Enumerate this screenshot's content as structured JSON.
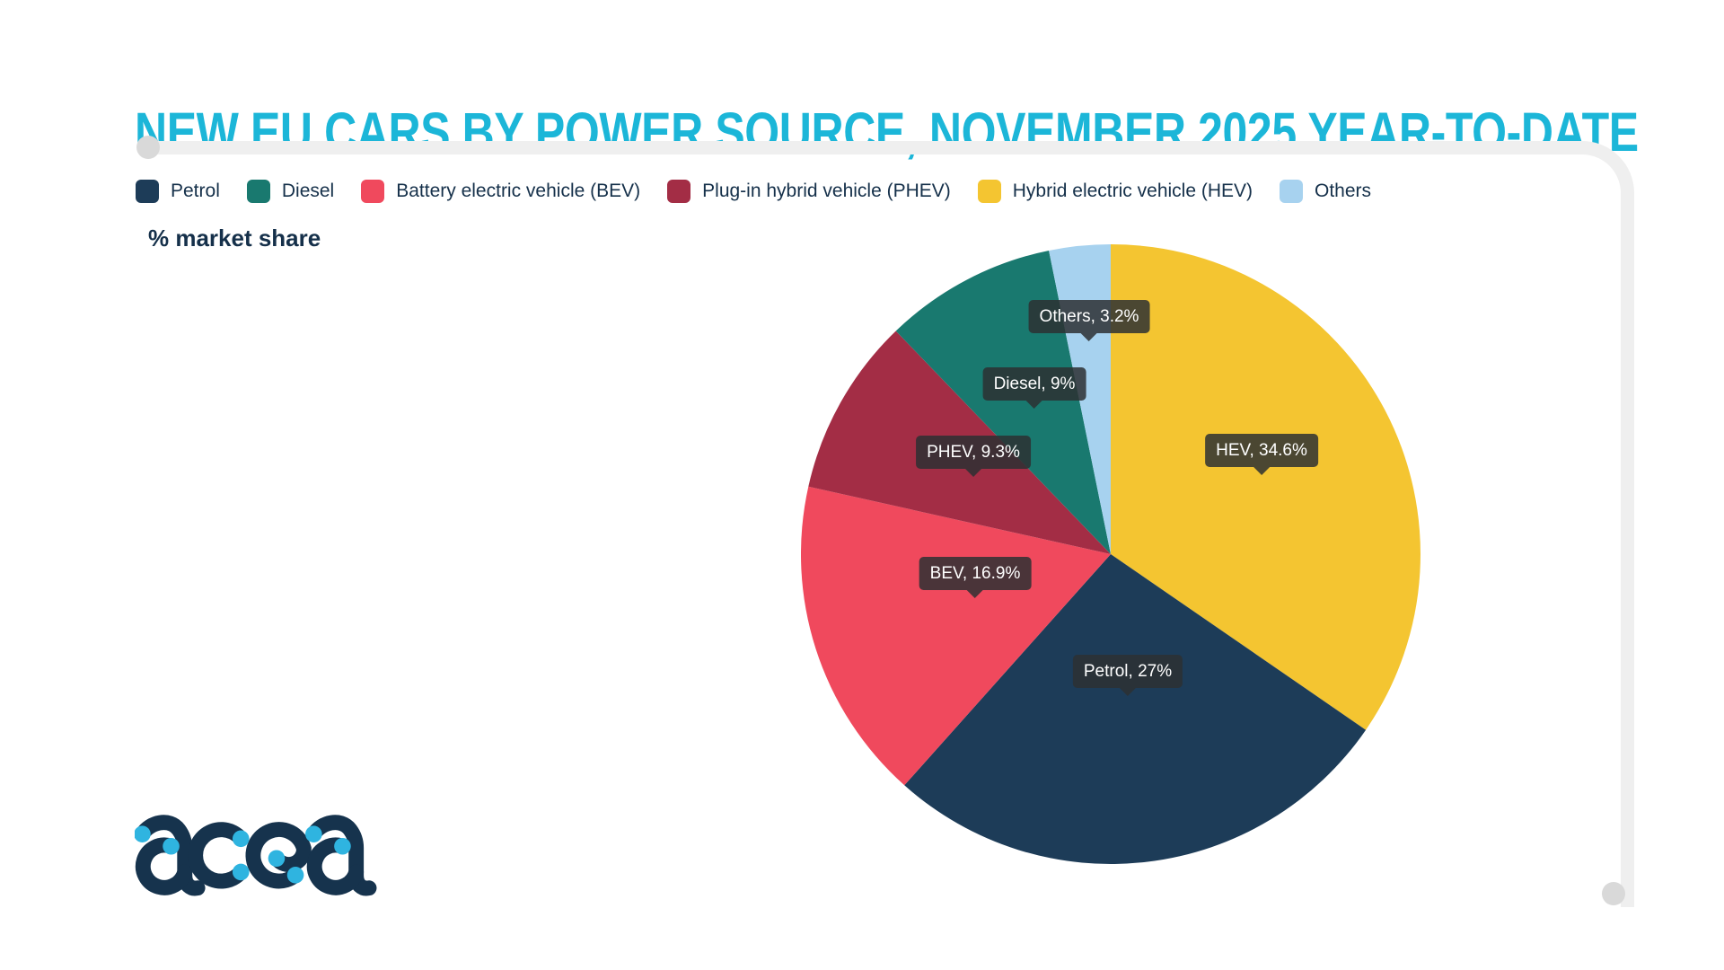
{
  "header": {
    "title": "NEW EU CARS BY POWER SOURCE, NOVEMBER 2025 YEAR-TO-DATE",
    "title_color": "#1cb6d8"
  },
  "note": {
    "label": "% market share"
  },
  "legend": [
    {
      "label": "Petrol",
      "color": "#1d3c58"
    },
    {
      "label": "Diesel",
      "color": "#19796f"
    },
    {
      "label": "Battery electric vehicle (BEV)",
      "color": "#f0495d"
    },
    {
      "label": "Plug-in hybrid vehicle (PHEV)",
      "color": "#a32d45"
    },
    {
      "label": "Hybrid electric vehicle (HEV)",
      "color": "#f4c531"
    },
    {
      "label": "Others",
      "color": "#a7d2ef"
    }
  ],
  "chart_data": {
    "type": "pie",
    "title": "NEW EU CARS BY POWER SOURCE, NOVEMBER 2025 YEAR-TO-DATE",
    "unit": "% market share",
    "start_angle_deg": 0,
    "direction": "clockwise",
    "legend_position": "top",
    "label_style": "dark-tooltip",
    "slices": [
      {
        "label": "Hybrid electric vehicle (HEV)",
        "short": "HEV",
        "value": 34.6,
        "color": "#f4c531",
        "label_text": "HEV, 34.6%",
        "label_r": 0.55
      },
      {
        "label": "Petrol",
        "short": "Petrol",
        "value": 27,
        "color": "#1d3c58",
        "label_text": "Petrol, 27%",
        "label_r": 0.46
      },
      {
        "label": "Battery electric vehicle (BEV)",
        "short": "BEV",
        "value": 16.9,
        "color": "#f0495d",
        "label_text": "BEV, 16.9%",
        "label_r": 0.46
      },
      {
        "label": "Plug-in hybrid vehicle (PHEV)",
        "short": "PHEV",
        "value": 9.3,
        "color": "#a32d45",
        "label_text": "PHEV, 9.3%",
        "label_r": 0.51
      },
      {
        "label": "Diesel",
        "short": "Diesel",
        "value": 9,
        "color": "#19796f",
        "label_text": "Diesel, 9%",
        "label_r": 0.53
      },
      {
        "label": "Others",
        "short": "Others",
        "value": 3.2,
        "color": "#a7d2ef",
        "label_text": "Others, 3.2%",
        "label_r": 0.69
      }
    ]
  },
  "logo": {
    "text": "acea",
    "color": "#16334d",
    "dot_color": "#2fb4e0"
  }
}
